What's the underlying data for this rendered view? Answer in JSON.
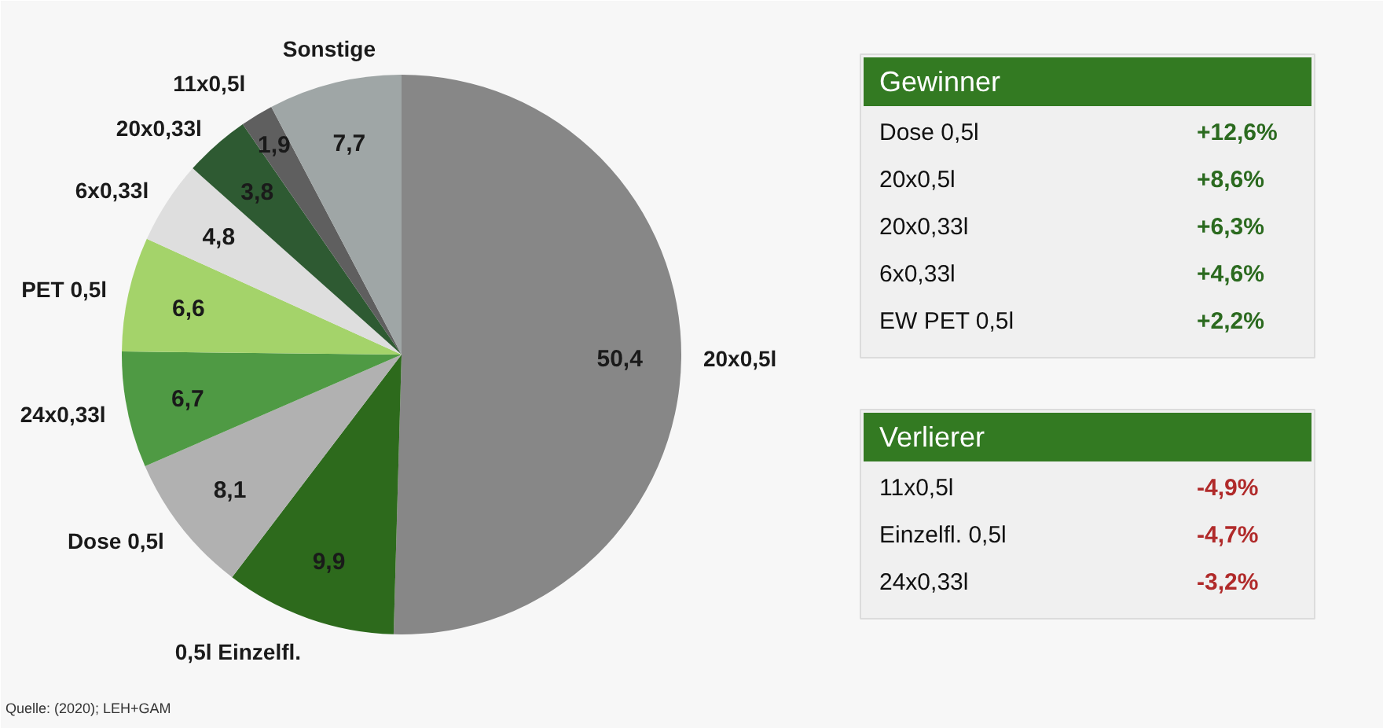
{
  "chart_data": [
    {
      "type": "pie",
      "categories": [
        "20x0,5l",
        "0,5l Einzelfl.",
        "Dose 0,5l",
        "24x0,33l",
        "PET 0,5l",
        "6x0,33l",
        "20x0,33l",
        "11x0,5l",
        "Sonstige"
      ],
      "values": [
        50.4,
        9.9,
        8.1,
        6.7,
        6.6,
        4.8,
        3.8,
        1.9,
        7.7
      ],
      "colors": [
        "#878787",
        "#2d6a1c",
        "#b1b1b1",
        "#4f9a44",
        "#a4d36a",
        "#dedede",
        "#2e5a32",
        "#5f5f5f",
        "#9fa6a6"
      ],
      "value_labels": [
        "50,4",
        "9,9",
        "8,1",
        "6,7",
        "6,6",
        "4,8",
        "3,8",
        "1,9",
        "7,7"
      ],
      "annotations": [
        "Quelle: (2020); LEH+GAM"
      ]
    },
    {
      "type": "other",
      "title": "Gewinner",
      "color": "#2b6a1f",
      "categories": [
        "Dose 0,5l",
        "20x0,5l",
        "20x0,33l",
        "6x0,33l",
        "EW PET 0,5l"
      ],
      "value_labels": [
        "+12,6%",
        "+8,6%",
        "+6,3%",
        "+4,6%",
        "+2,2%"
      ]
    },
    {
      "type": "other",
      "title": "Verlierer",
      "color": "#b02a2a",
      "categories": [
        "11x0,5l",
        "Einzelfl. 0,5l",
        "24x0,33l"
      ],
      "value_labels": [
        "-4,9%",
        "-4,7%",
        "-3,2%"
      ]
    }
  ]
}
